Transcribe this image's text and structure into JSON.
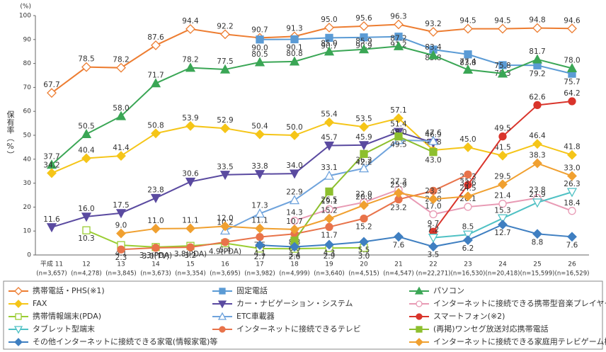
{
  "chart_data": {
    "type": "line",
    "y_unit": "(%)",
    "y_label": "保有率（%）",
    "categories": [
      "平成 11",
      "12",
      "13",
      "14",
      "15",
      "16",
      "17",
      "18",
      "19",
      "20",
      "21",
      "22",
      "23",
      "24",
      "25",
      "26"
    ],
    "sample_sizes": [
      "(n=3,657)",
      "(n=4,278)",
      "(n=3,845)",
      "(n=3,673)",
      "(n=3,354)",
      "(n=3,695)",
      "(n=3,982)",
      "(n=4,999)",
      "(n=3,640)",
      "(n=4,515)",
      "(n=4,547)",
      "(n=22,271)",
      "(n=16,530)",
      "(n=20,418)",
      "(n=15,599)",
      "(n=16,529)"
    ],
    "ylim": [
      0,
      100
    ],
    "yticks": [
      0,
      10,
      20,
      30,
      40,
      50,
      60,
      70,
      80,
      90,
      100
    ],
    "grid": false,
    "series": [
      {
        "name": "携帯電話・PHS(※1)",
        "color": "#ed7d31",
        "marker": "diamond",
        "hollow": true,
        "values": [
          67.7,
          78.5,
          78.2,
          87.6,
          94.4,
          92.2,
          90.7,
          91.3,
          95.0,
          95.6,
          96.3,
          93.2,
          94.5,
          94.5,
          94.8,
          94.6
        ],
        "value_labels": [
          "67.7",
          "78.5",
          "78.2",
          "87.6",
          "94.4",
          "92.2",
          "90.7",
          "91.3",
          "95.0",
          "95.6",
          "96.3",
          "93.2",
          "94.5",
          "94.5",
          "94.8",
          "94.6"
        ]
      },
      {
        "name": "固定電話",
        "color": "#5b9bd5",
        "marker": "square",
        "hollow": false,
        "values": [
          null,
          null,
          null,
          null,
          null,
          null,
          90.0,
          90.1,
          90.7,
          90.9,
          91.2,
          85.8,
          83.8,
          79.3,
          79.2,
          75.7
        ],
        "value_labels": [
          null,
          null,
          null,
          null,
          null,
          null,
          "90.0",
          "90.1",
          "90.7",
          "90.9",
          "91.2",
          "85.8",
          "83.8",
          "79.3",
          "79.2",
          "75.7"
        ]
      },
      {
        "name": "パソコン",
        "color": "#3aa655",
        "marker": "triangle",
        "hollow": false,
        "values": [
          37.7,
          50.5,
          58.0,
          71.7,
          78.2,
          77.5,
          80.5,
          80.8,
          85.0,
          85.9,
          87.2,
          83.4,
          77.4,
          75.8,
          81.7,
          78.0
        ],
        "value_labels": [
          "37.7",
          "50.5",
          "58.0",
          "71.7",
          "78.2",
          "77.5",
          "80.5",
          "80.8",
          "85.0",
          "85.9",
          "87.2",
          "83.4",
          "77.4",
          "75.8",
          "81.7",
          "78.0"
        ]
      },
      {
        "name": "FAX",
        "color": "#f5c518",
        "marker": "diamond",
        "hollow": false,
        "values": [
          34.2,
          40.4,
          41.4,
          50.8,
          53.9,
          52.9,
          50.4,
          50.0,
          55.4,
          53.5,
          57.1,
          43.8,
          45.0,
          41.5,
          46.4,
          41.8
        ],
        "value_labels": [
          "34.2",
          "40.4",
          "41.4",
          "50.8",
          "53.9",
          "52.9",
          "50.4",
          "50.0",
          "55.4",
          "53.5",
          "57.1",
          "43.8",
          "45.0",
          "41.5",
          "46.4",
          "41.8"
        ]
      },
      {
        "name": "カー・ナビゲーション・システム",
        "color": "#5a4aa0",
        "marker": "triangle-down",
        "hollow": false,
        "values": [
          11.6,
          16.0,
          17.5,
          23.8,
          30.6,
          33.5,
          33.8,
          34.0,
          45.7,
          45.9,
          51.4,
          46.9,
          null,
          null,
          null,
          null
        ],
        "value_labels": [
          "11.6",
          "16.0",
          "17.5",
          "23.8",
          "30.6",
          "33.5",
          "33.8",
          "34.0",
          "45.7",
          "45.9",
          "51.4",
          "46.9",
          null,
          null,
          null,
          null
        ]
      },
      {
        "name": "インターネットに接続できる携帯型音楽プレイヤー",
        "color": "#e89ab4",
        "marker": "circle",
        "hollow": true,
        "values": [
          null,
          null,
          null,
          null,
          null,
          null,
          null,
          14.3,
          19.1,
          22.0,
          27.3,
          17.0,
          20.1,
          21.4,
          23.8,
          18.4
        ],
        "value_labels": [
          null,
          null,
          null,
          null,
          null,
          null,
          null,
          "14.3",
          "19.1",
          "22.0",
          "27.3",
          "17.0",
          "20.1",
          "21.4",
          "23.8",
          "18.4"
        ]
      },
      {
        "name": "携帯情報端末(PDA)",
        "color": "#9acd32",
        "marker": "square",
        "hollow": true,
        "values": [
          null,
          10.3,
          4.1,
          3.3,
          3.8,
          4.9,
          2.7,
          2.6,
          2.9,
          3.0,
          null,
          null,
          null,
          null,
          null,
          null
        ],
        "value_labels": [
          null,
          "10.3",
          "4.1",
          "3.3(PDA)",
          "3.8(PDA)",
          "4.9(PDA)",
          "2.7",
          "2.6",
          "2.9",
          "3.0",
          null,
          null,
          null,
          null,
          null,
          null
        ]
      },
      {
        "name": "ETC車載器",
        "color": "#6fa3dc",
        "marker": "triangle",
        "hollow": true,
        "values": [
          null,
          null,
          null,
          null,
          null,
          10.2,
          17.3,
          22.9,
          33.1,
          36.2,
          48.0,
          47.6,
          null,
          null,
          null,
          null
        ],
        "value_labels": [
          null,
          null,
          null,
          null,
          null,
          "10.2",
          "17.3",
          "22.9",
          "33.1",
          "36.2",
          "48.0",
          "47.6",
          null,
          null,
          null,
          null
        ]
      },
      {
        "name": "スマートフォン(※2)",
        "color": "#d9342b",
        "marker": "circle",
        "hollow": false,
        "values": [
          null,
          null,
          null,
          null,
          null,
          null,
          null,
          null,
          null,
          null,
          null,
          9.7,
          29.3,
          49.5,
          62.6,
          64.2
        ],
        "value_labels": [
          null,
          null,
          null,
          null,
          null,
          null,
          null,
          null,
          null,
          null,
          null,
          "9.7",
          "29.3",
          "49.5",
          "62.6",
          "64.2"
        ]
      },
      {
        "name": "タブレット型端末",
        "color": "#4fc1c4",
        "marker": "triangle-down",
        "hollow": true,
        "values": [
          null,
          null,
          null,
          null,
          null,
          null,
          null,
          null,
          null,
          null,
          null,
          7.2,
          8.5,
          15.3,
          21.9,
          26.3
        ],
        "value_labels": [
          null,
          null,
          null,
          null,
          null,
          null,
          null,
          null,
          null,
          null,
          null,
          "7.2",
          "8.5",
          "15.3",
          "21.9",
          "26.3"
        ]
      },
      {
        "name": "インターネットに接続できるテレビ",
        "color": "#e8734a",
        "marker": "circle",
        "hollow": false,
        "values": [
          null,
          null,
          2.3,
          3.0,
          3.2,
          5.4,
          7.5,
          8.8,
          11.7,
          15.2,
          23.2,
          26.8,
          33.6,
          null,
          null,
          null
        ],
        "value_labels": [
          null,
          null,
          "2.3",
          "3.0(TV)",
          "3.2",
          "5.4",
          "7.5",
          "8.8",
          "11.7",
          "15.2",
          "23.2",
          "26.8",
          "33.6",
          null,
          null,
          null
        ]
      },
      {
        "name": "(再掲)ワンセグ放送対応携帯電話",
        "color": "#8dbf2e",
        "marker": "square",
        "hollow": false,
        "values": [
          null,
          null,
          null,
          null,
          null,
          null,
          null,
          6.0,
          26.5,
          42.2,
          49.5,
          43.0,
          null,
          null,
          null,
          null
        ],
        "value_labels": [
          null,
          null,
          null,
          null,
          null,
          null,
          null,
          "6.0",
          "26.5",
          "42.2",
          "49.5",
          "43.0",
          null,
          null,
          null,
          null
        ]
      },
      {
        "name": "その他インターネットに接続できる家電(情報家電)等",
        "color": "#3f7fc1",
        "marker": "diamond",
        "hollow": false,
        "values": [
          null,
          null,
          null,
          null,
          null,
          null,
          4.1,
          3.4,
          4.3,
          5.5,
          7.6,
          3.5,
          6.2,
          12.7,
          8.8,
          7.6
        ],
        "value_labels": [
          null,
          null,
          null,
          null,
          null,
          null,
          "4.1",
          "3.4",
          "4.3",
          "5.5",
          "7.6",
          "3.5",
          "6.2",
          "12.7",
          "8.8",
          "7.6"
        ]
      },
      {
        "name": "インターネットに接続できる家庭用テレビゲーム機",
        "color": "#f0a030",
        "marker": "diamond",
        "hollow": false,
        "values": [
          null,
          null,
          9.0,
          11.0,
          11.1,
          12.0,
          11.1,
          10.7,
          15.2,
          20.8,
          25.9,
          23.3,
          24.5,
          29.5,
          38.3,
          33.0
        ],
        "value_labels": [
          null,
          null,
          "9.0",
          "11.0",
          "11.1",
          "12.0",
          "11.1",
          "10.7",
          "15.2",
          "20.8",
          "25.9",
          "23.3",
          "24.5",
          "29.5",
          "38.3",
          "33.0"
        ]
      }
    ]
  }
}
